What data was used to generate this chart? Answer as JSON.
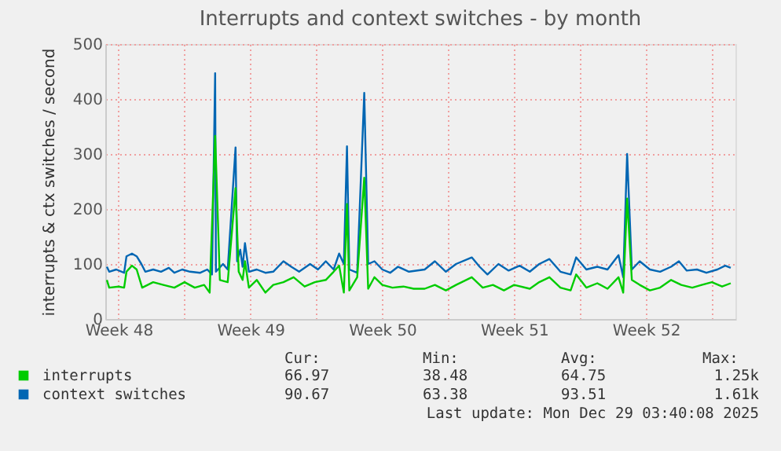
{
  "chart_data": {
    "type": "line",
    "title": "Interrupts and context switches - by month",
    "ylabel": "interrupts & ctx switches / second",
    "xlim": [
      "2025-11-25T19:00",
      "2025-12-29T06:00"
    ],
    "xticks": [
      {
        "value": "2025-11-26T12:00",
        "label": "Week 48"
      },
      {
        "value": "2025-11-30T00:00",
        "label": null
      },
      {
        "value": "2025-12-03T12:00",
        "label": "Week 49"
      },
      {
        "value": "2025-12-07T00:00",
        "label": null
      },
      {
        "value": "2025-12-10T12:00",
        "label": "Week 50"
      },
      {
        "value": "2025-12-14T00:00",
        "label": null
      },
      {
        "value": "2025-12-17T12:00",
        "label": "Week 51"
      },
      {
        "value": "2025-12-21T00:00",
        "label": null
      },
      {
        "value": "2025-12-24T12:00",
        "label": "Week 52"
      },
      {
        "value": "2025-12-28T00:00",
        "label": null
      }
    ],
    "ylim": [
      0,
      500
    ],
    "yticks": [
      0,
      100,
      200,
      300,
      400,
      500
    ],
    "grid": true,
    "legend": "bottom",
    "series": [
      {
        "name": "context switches",
        "color": "#0066b3",
        "x": [
          "2025-11-25T21:00",
          "2025-11-26T00:00",
          "2025-11-26T09:00",
          "2025-11-26T19:00",
          "2025-11-26T22:00",
          "2025-11-27T05:00",
          "2025-11-27T11:00",
          "2025-11-27T17:00",
          "2025-11-27T22:00",
          "2025-11-28T08:00",
          "2025-11-28T18:00",
          "2025-11-29T04:00",
          "2025-11-29T11:00",
          "2025-11-29T21:00",
          "2025-11-30T07:00",
          "2025-11-30T20:00",
          "2025-12-01T05:00",
          "2025-12-01T11:00",
          "2025-12-01T15:00",
          "2025-12-01T16:00",
          "2025-12-02T01:00",
          "2025-12-02T07:00",
          "2025-12-02T17:00",
          "2025-12-02T19:00",
          "2025-12-02T23:00",
          "2025-12-03T02:00",
          "2025-12-03T05:00",
          "2025-12-03T10:00",
          "2025-12-03T20:00",
          "2025-12-04T07:00",
          "2025-12-04T17:00",
          "2025-12-05T06:00",
          "2025-12-05T16:00",
          "2025-12-06T02:00",
          "2025-12-06T16:00",
          "2025-12-07T02:00",
          "2025-12-07T12:00",
          "2025-12-07T22:00",
          "2025-12-08T05:00",
          "2025-12-08T11:00",
          "2025-12-08T15:00",
          "2025-12-08T18:00",
          "2025-12-09T04:00",
          "2025-12-09T13:00",
          "2025-12-09T18:00",
          "2025-12-10T02:00",
          "2025-12-10T12:00",
          "2025-12-10T22:00",
          "2025-12-11T08:00",
          "2025-12-11T22:00",
          "2025-12-12T18:00",
          "2025-12-13T07:00",
          "2025-12-13T21:00",
          "2025-12-14T10:00",
          "2025-12-15T06:00",
          "2025-12-15T16:00",
          "2025-12-16T02:00",
          "2025-12-16T16:00",
          "2025-12-17T05:00",
          "2025-12-17T19:00",
          "2025-12-18T08:00",
          "2025-12-18T20:00",
          "2025-12-19T09:00",
          "2025-12-19T23:00",
          "2025-12-20T12:00",
          "2025-12-20T19:00",
          "2025-12-21T08:00",
          "2025-12-21T22:00",
          "2025-12-22T11:00",
          "2025-12-23T01:00",
          "2025-12-23T07:00",
          "2025-12-23T12:00",
          "2025-12-23T18:00",
          "2025-12-24T04:00",
          "2025-12-24T17:00",
          "2025-12-25T06:00",
          "2025-12-25T20:00",
          "2025-12-26T06:00",
          "2025-12-26T16:00",
          "2025-12-27T05:00",
          "2025-12-27T17:00",
          "2025-12-28T07:00",
          "2025-12-28T17:00",
          "2025-12-29T00:00"
        ],
        "values": [
          95,
          86,
          90,
          84,
          114,
          119,
          114,
          100,
          86,
          90,
          86,
          93,
          84,
          90,
          86,
          84,
          90,
          81,
          447,
          86,
          100,
          90,
          312,
          105,
          126,
          95,
          138,
          86,
          90,
          84,
          86,
          105,
          95,
          86,
          100,
          90,
          105,
          90,
          119,
          100,
          314,
          90,
          84,
          411,
          100,
          105,
          90,
          84,
          95,
          86,
          90,
          105,
          86,
          100,
          112,
          95,
          81,
          100,
          88,
          97,
          86,
          100,
          109,
          86,
          81,
          112,
          90,
          95,
          90,
          116,
          76,
          300,
          90,
          105,
          90,
          86,
          95,
          105,
          88,
          90,
          84,
          90,
          97,
          93
        ]
      },
      {
        "name": "interrupts",
        "color": "#00cc00",
        "x": [
          "2025-11-25T21:00",
          "2025-11-26T00:00",
          "2025-11-26T12:00",
          "2025-11-26T19:00",
          "2025-11-26T22:00",
          "2025-11-27T05:00",
          "2025-11-27T11:00",
          "2025-11-27T18:00",
          "2025-11-28T08:00",
          "2025-11-28T21:00",
          "2025-11-29T11:00",
          "2025-11-30T00:00",
          "2025-11-30T13:00",
          "2025-12-01T01:00",
          "2025-12-01T08:00",
          "2025-12-01T15:00",
          "2025-12-01T21:00",
          "2025-12-02T07:00",
          "2025-12-02T17:00",
          "2025-12-02T21:00",
          "2025-12-03T02:00",
          "2025-12-03T05:00",
          "2025-12-03T10:00",
          "2025-12-03T20:00",
          "2025-12-04T07:00",
          "2025-12-04T17:00",
          "2025-12-05T06:00",
          "2025-12-05T19:00",
          "2025-12-06T09:00",
          "2025-12-06T22:00",
          "2025-12-07T12:00",
          "2025-12-07T22:00",
          "2025-12-08T05:00",
          "2025-12-08T11:00",
          "2025-12-08T15:00",
          "2025-12-08T18:00",
          "2025-12-09T04:00",
          "2025-12-09T13:00",
          "2025-12-09T18:00",
          "2025-12-10T02:00",
          "2025-12-10T12:00",
          "2025-12-11T01:00",
          "2025-12-11T15:00",
          "2025-12-12T04:00",
          "2025-12-12T18:00",
          "2025-12-13T07:00",
          "2025-12-13T21:00",
          "2025-12-14T10:00",
          "2025-12-15T06:00",
          "2025-12-15T20:00",
          "2025-12-16T09:00",
          "2025-12-16T23:00",
          "2025-12-17T12:00",
          "2025-12-18T08:00",
          "2025-12-18T20:00",
          "2025-12-19T09:00",
          "2025-12-19T23:00",
          "2025-12-20T12:00",
          "2025-12-20T19:00",
          "2025-12-21T08:00",
          "2025-12-21T22:00",
          "2025-12-22T11:00",
          "2025-12-23T01:00",
          "2025-12-23T07:00",
          "2025-12-23T12:00",
          "2025-12-23T18:00",
          "2025-12-24T04:00",
          "2025-12-24T17:00",
          "2025-12-25T06:00",
          "2025-12-25T20:00",
          "2025-12-26T09:00",
          "2025-12-26T23:00",
          "2025-12-27T11:00",
          "2025-12-28T00:00",
          "2025-12-28T13:00",
          "2025-12-29T00:00"
        ],
        "values": [
          71,
          57,
          59,
          57,
          86,
          97,
          90,
          57,
          67,
          62,
          57,
          67,
          57,
          62,
          48,
          333,
          71,
          67,
          238,
          86,
          71,
          105,
          57,
          71,
          48,
          62,
          67,
          76,
          59,
          67,
          71,
          86,
          97,
          48,
          209,
          52,
          76,
          257,
          55,
          76,
          62,
          57,
          59,
          55,
          55,
          62,
          52,
          62,
          76,
          57,
          62,
          52,
          62,
          55,
          67,
          76,
          57,
          52,
          81,
          57,
          65,
          55,
          76,
          48,
          219,
          71,
          62,
          52,
          57,
          71,
          62,
          57,
          62,
          67,
          59,
          65
        ]
      }
    ],
    "annotations": [
      "Cur:",
      "Min:",
      "Avg:",
      "Max:",
      "66.97",
      "38.48",
      "64.75",
      "1.25k",
      "90.67",
      "63.38",
      "93.51",
      "1.61k",
      "Last update: Mon Dec 29 03:40:08 2025"
    ]
  }
}
